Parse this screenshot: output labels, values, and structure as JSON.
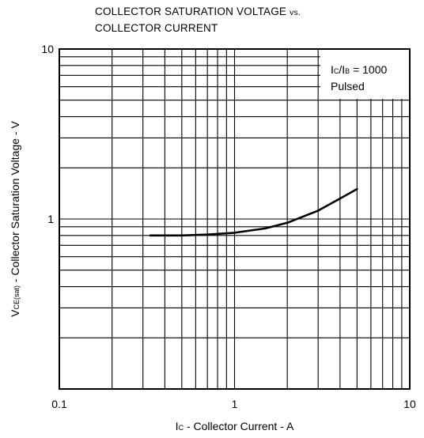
{
  "title_line1": "COLLECTOR SATURATION VOLTAGE",
  "title_line1_suffix": "vs.",
  "title_line2": "COLLECTOR CURRENT",
  "chart_data": {
    "type": "line",
    "title": "COLLECTOR SATURATION VOLTAGE vs. COLLECTOR CURRENT",
    "xscale": "log",
    "yscale": "log",
    "xlim": [
      0.1,
      10
    ],
    "ylim": [
      0.1,
      10
    ],
    "grid": true,
    "xlabel": {
      "main": "I",
      "sub": "C",
      "rest": " - Collector Current - A"
    },
    "ylabel": {
      "main": "V",
      "sub": "CE(sat)",
      "rest": " - Collector Saturation Voltage - V"
    },
    "x_ticks": [
      {
        "value": 0.1,
        "label": "0.1"
      },
      {
        "value": 1,
        "label": "1"
      },
      {
        "value": 10,
        "label": "10"
      }
    ],
    "y_ticks": [
      {
        "value": 1,
        "label": "1"
      },
      {
        "value": 10,
        "label": "10"
      }
    ],
    "legend": {
      "position": "top-right",
      "line1": {
        "i1": "I",
        "s1": "C",
        "slash": "/I",
        "s2": "B",
        "rest": " = 1000"
      },
      "line2": "Pulsed"
    },
    "series": [
      {
        "color": "#000000",
        "x": [
          0.33,
          0.5,
          0.7,
          1.0,
          1.5,
          2.0,
          3.0,
          4.0,
          5.0
        ],
        "y": [
          0.8,
          0.8,
          0.81,
          0.83,
          0.88,
          0.95,
          1.12,
          1.32,
          1.5
        ]
      }
    ]
  }
}
